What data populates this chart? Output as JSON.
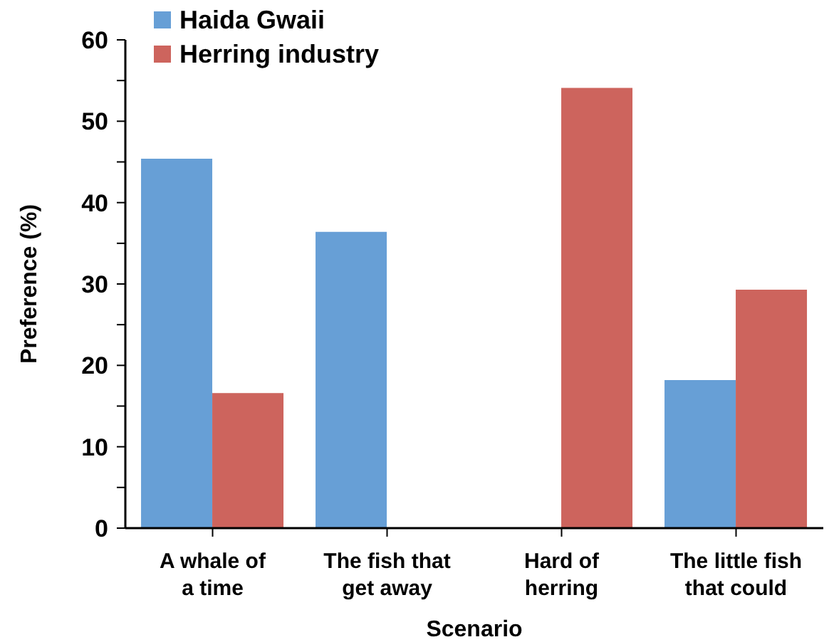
{
  "chart_data": {
    "type": "bar",
    "xlabel": "Scenario",
    "ylabel": "Preference (%)",
    "categories": [
      "A whale of\na time",
      "The fish that\nget away",
      "Hard of\nherring",
      "The little fish\nthat could"
    ],
    "series": [
      {
        "name": "Haida Gwaii",
        "color": "#679fd6",
        "values": [
          45.4,
          36.4,
          null,
          18.2
        ]
      },
      {
        "name": "Herring industry",
        "color": "#cd645d",
        "values": [
          16.6,
          null,
          54.1,
          29.3
        ]
      }
    ],
    "ylim": [
      0,
      60
    ],
    "yticks": [
      0,
      {
        "value": 5,
        "label": null
      },
      10,
      {
        "value": 15,
        "label": null
      },
      20,
      {
        "value": 25,
        "label": null
      },
      30,
      {
        "value": 35,
        "label": null
      },
      40,
      {
        "value": 45,
        "label": null
      },
      50,
      {
        "value": 55,
        "label": null
      },
      60
    ],
    "grid": false,
    "legend": "top left"
  }
}
